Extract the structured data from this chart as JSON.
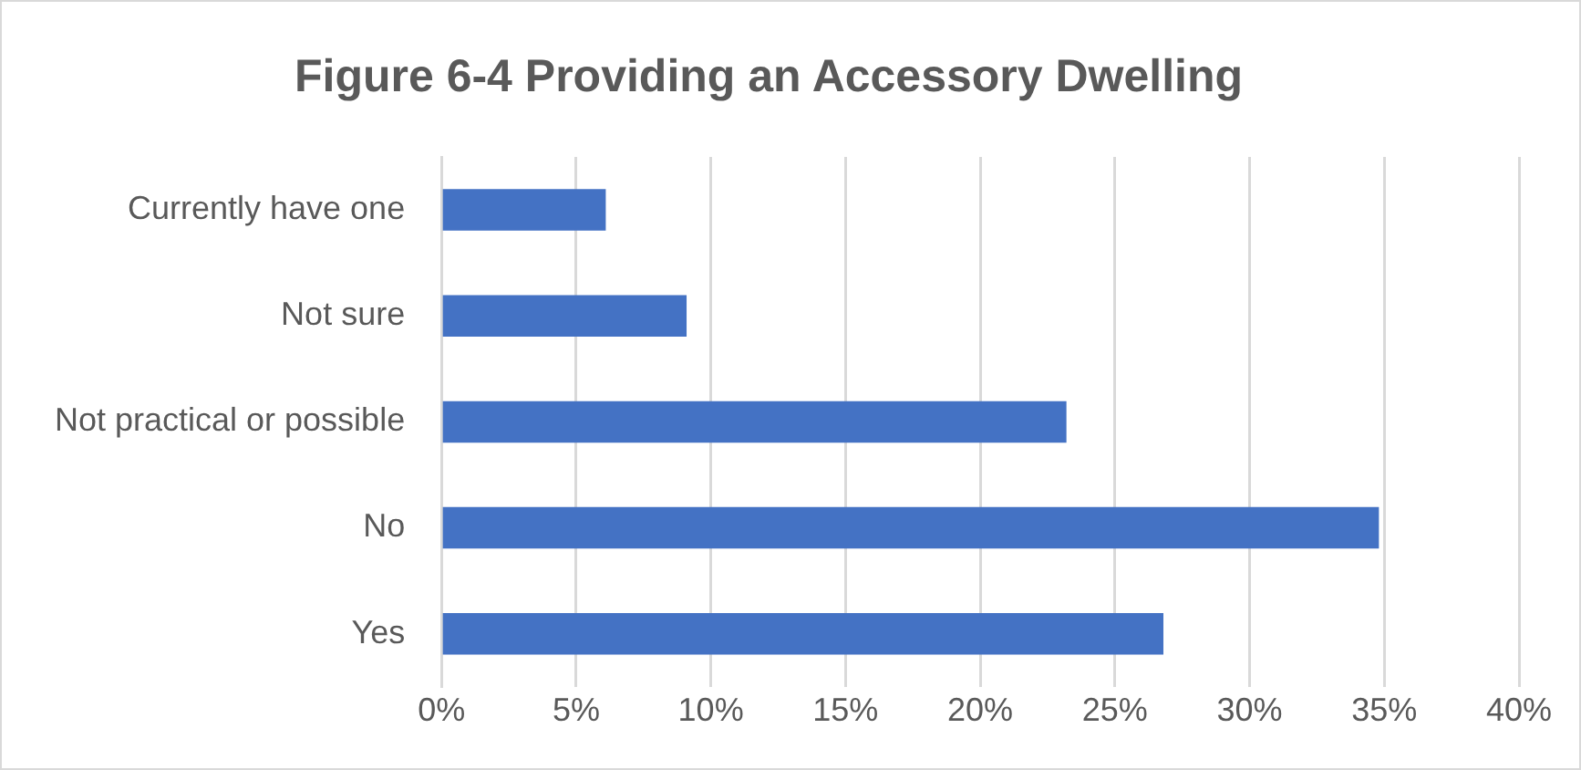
{
  "chart_data": {
    "type": "bar",
    "orientation": "horizontal",
    "title": "Figure 6-4 Providing an Accessory Dwelling",
    "categories": [
      "Currently have one",
      "Not sure",
      "Not practical or possible",
      "No",
      "Yes"
    ],
    "values": [
      6.1,
      9.1,
      23.2,
      34.8,
      26.8
    ],
    "color": "#4472c4",
    "xlim": [
      0,
      40
    ],
    "xticks": [
      {
        "value": 0,
        "label": "0%"
      },
      {
        "value": 5,
        "label": "5%"
      },
      {
        "value": 10,
        "label": "10%"
      },
      {
        "value": 15,
        "label": "15%"
      },
      {
        "value": 20,
        "label": "20%"
      },
      {
        "value": 25,
        "label": "25%"
      },
      {
        "value": 30,
        "label": "30%"
      },
      {
        "value": 35,
        "label": "35%"
      },
      {
        "value": 40,
        "label": "40%"
      }
    ],
    "grid": "x",
    "legend": false
  }
}
